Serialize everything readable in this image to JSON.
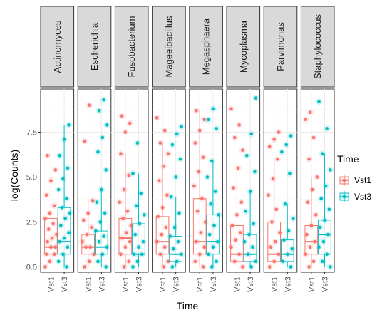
{
  "chart_data": {
    "type": "box",
    "facet_by": "genus",
    "facets": [
      "Actinomyces",
      "Escherichia",
      "Fusobacterium",
      "Mageeibacillus",
      "Megasphaera",
      "Mycoplasma",
      "Parvimonas",
      "Staphylococcus"
    ],
    "categories": [
      "Vst1",
      "Vst3"
    ],
    "xlabel": "Time",
    "ylabel": "log(Counts)",
    "ylim": [
      -0.3,
      9.9
    ],
    "y_ticks": [
      0.0,
      2.5,
      5.0,
      7.5
    ],
    "y_tick_labels": [
      "0.0",
      "2.5",
      "5.0",
      "7.5"
    ],
    "legend": {
      "title": "Time",
      "position": "right",
      "entries": [
        {
          "label": "Vst1",
          "color": "#F8766D"
        },
        {
          "label": "Vst3",
          "color": "#00BFC4"
        }
      ]
    },
    "series_colors": {
      "Vst1": "#F8766D",
      "Vst3": "#00BFC4"
    },
    "panels": [
      {
        "facet": "Actinomyces",
        "boxes": {
          "Vst1": {
            "min": 0,
            "q1": 0.7,
            "median": 1.1,
            "q3": 2.7,
            "max": 6.2
          },
          "Vst3": {
            "min": 0,
            "q1": 0.7,
            "median": 1.4,
            "q3": 3.3,
            "max": 7.9
          }
        },
        "points": {
          "Vst1": [
            0,
            0.3,
            0.7,
            0.7,
            1.1,
            1.1,
            1.4,
            1.6,
            1.8,
            2.1,
            2.4,
            2.7,
            3.0,
            3.4,
            4.0,
            4.8,
            5.4,
            6.2
          ],
          "Vst3": [
            0,
            0.3,
            0.7,
            1.1,
            1.4,
            1.6,
            1.9,
            2.3,
            2.7,
            3.0,
            3.3,
            3.8,
            4.3,
            4.9,
            5.5,
            6.2,
            7.1,
            7.9
          ]
        }
      },
      {
        "facet": "Escherichia",
        "boxes": {
          "Vst1": {
            "min": 0,
            "q1": 0.7,
            "median": 1.1,
            "q3": 1.8,
            "max": 3.7
          },
          "Vst3": {
            "min": 0,
            "q1": 0.7,
            "median": 1.1,
            "q3": 2.0,
            "max": 4.3
          }
        },
        "points": {
          "Vst1": [
            0,
            0.3,
            0.7,
            1.1,
            1.1,
            1.4,
            1.8,
            2.2,
            2.6,
            3.0,
            3.7,
            7.0,
            9.0
          ],
          "Vst3": [
            0,
            0.3,
            0.7,
            1.1,
            1.4,
            1.7,
            2.0,
            2.5,
            3.0,
            3.6,
            4.3,
            5.4,
            6.4,
            7.2,
            7.9,
            8.7,
            9.3
          ]
        }
      },
      {
        "facet": "Fusobacterium",
        "boxes": {
          "Vst1": {
            "min": 0,
            "q1": 0.7,
            "median": 1.6,
            "q3": 2.7,
            "max": 6.3
          },
          "Vst3": {
            "min": 0,
            "q1": 0.7,
            "median": 0.7,
            "q3": 2.4,
            "max": 5.2
          }
        },
        "points": {
          "Vst1": [
            0,
            0.3,
            0.7,
            1.1,
            1.4,
            1.6,
            1.9,
            2.3,
            2.7,
            3.1,
            3.6,
            4.3,
            5.1,
            6.3,
            7.5,
            8.0,
            8.4
          ],
          "Vst3": [
            0,
            0.3,
            0.7,
            0.7,
            1.1,
            1.4,
            1.8,
            2.4,
            2.9,
            3.4,
            4.1,
            5.2,
            6.9
          ]
        }
      },
      {
        "facet": "Mageeibacillus",
        "boxes": {
          "Vst1": {
            "min": 0,
            "q1": 0.7,
            "median": 1.4,
            "q3": 2.8,
            "max": 6.9
          },
          "Vst3": {
            "min": 0,
            "q1": 0.3,
            "median": 0.7,
            "q3": 1.7,
            "max": 3.9
          }
        },
        "points": {
          "Vst1": [
            0,
            0.3,
            0.7,
            1.1,
            1.4,
            1.8,
            2.2,
            2.8,
            3.3,
            4.0,
            4.8,
            5.6,
            6.3,
            6.9,
            7.6,
            8.3
          ],
          "Vst3": [
            0,
            0.3,
            0.7,
            1.0,
            1.4,
            1.7,
            2.2,
            3.0,
            3.9,
            5.0,
            6.0,
            6.8,
            7.4,
            7.8
          ]
        }
      },
      {
        "facet": "Megasphaera",
        "boxes": {
          "Vst1": {
            "min": 0,
            "q1": 0.7,
            "median": 1.4,
            "q3": 3.8,
            "max": 8.7
          },
          "Vst3": {
            "min": 0,
            "q1": 0.7,
            "median": 1.4,
            "q3": 2.9,
            "max": 5.9
          }
        },
        "points": {
          "Vst1": [
            0,
            0.3,
            0.7,
            1.1,
            1.4,
            1.9,
            2.5,
            3.1,
            3.8,
            4.5,
            5.3,
            6.1,
            6.9,
            7.6,
            8.2,
            8.7
          ],
          "Vst3": [
            0,
            0.3,
            0.7,
            1.1,
            1.4,
            1.8,
            2.3,
            2.9,
            3.5,
            4.2,
            5.0,
            5.9,
            7.7,
            8.2,
            8.8
          ]
        }
      },
      {
        "facet": "Mycoplasma",
        "boxes": {
          "Vst1": {
            "min": 0,
            "q1": 0.3,
            "median": 0.7,
            "q3": 2.3,
            "max": 5.5
          },
          "Vst3": {
            "min": 0,
            "q1": 0.3,
            "median": 0.7,
            "q3": 1.8,
            "max": 4.2
          }
        },
        "points": {
          "Vst1": [
            0,
            0.3,
            0.7,
            1.1,
            1.5,
            1.9,
            2.3,
            2.9,
            3.6,
            4.4,
            5.5,
            6.5,
            7.2,
            7.9,
            8.8
          ],
          "Vst3": [
            0,
            0.3,
            0.7,
            1.1,
            1.4,
            1.8,
            2.4,
            3.1,
            4.2,
            5.3,
            6.2,
            7.4,
            9.4
          ]
        }
      },
      {
        "facet": "Parvimonas",
        "boxes": {
          "Vst1": {
            "min": 0,
            "q1": 0.3,
            "median": 0.7,
            "q3": 2.5,
            "max": 6.0
          },
          "Vst3": {
            "min": 0,
            "q1": 0.3,
            "median": 0.7,
            "q3": 1.5,
            "max": 3.5
          }
        },
        "points": {
          "Vst1": [
            0,
            0.3,
            0.7,
            1.1,
            1.4,
            1.9,
            2.5,
            3.2,
            4.0,
            4.9,
            6.0,
            6.7,
            7.1,
            7.5
          ],
          "Vst3": [
            0,
            0.3,
            0.7,
            1.0,
            1.5,
            2.0,
            2.7,
            3.5,
            5.2,
            6.4,
            6.8,
            7.3
          ]
        }
      },
      {
        "facet": "Staphylococcus",
        "boxes": {
          "Vst1": {
            "min": 0,
            "q1": 0.7,
            "median": 1.4,
            "q3": 2.3,
            "max": 5.0
          },
          "Vst3": {
            "min": 0,
            "q1": 0.7,
            "median": 1.8,
            "q3": 2.6,
            "max": 6.3
          }
        },
        "points": {
          "Vst1": [
            0,
            0.3,
            0.7,
            1.1,
            1.4,
            1.8,
            2.3,
            2.9,
            3.6,
            4.3,
            5.0,
            6.0,
            7.2,
            8.2,
            8.6
          ],
          "Vst3": [
            0,
            0.3,
            0.7,
            1.1,
            1.4,
            1.8,
            2.2,
            2.6,
            3.2,
            3.8,
            4.5,
            5.4,
            6.3,
            7.7,
            9.2
          ]
        }
      }
    ]
  }
}
